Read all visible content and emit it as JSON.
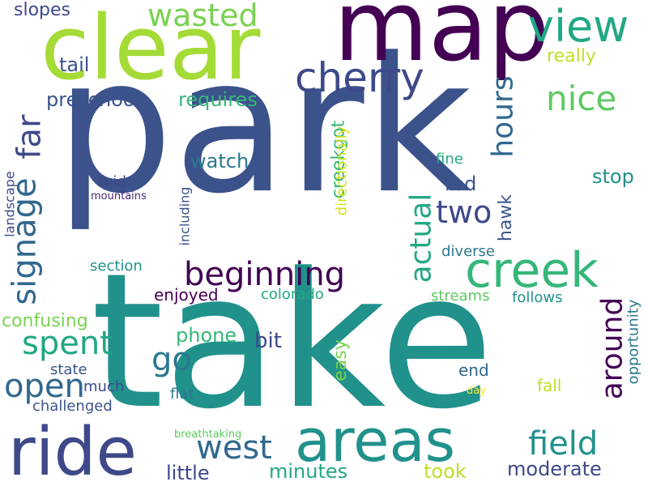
{
  "words": [
    {
      "text": "park",
      "color": "#3b528b"
    },
    {
      "text": "take",
      "color": "#21918c"
    },
    {
      "text": "map",
      "color": "#440154"
    },
    {
      "text": "clear",
      "color": "#a5db36"
    },
    {
      "text": "areas",
      "color": "#21918c"
    },
    {
      "text": "ride",
      "color": "#3e4989"
    },
    {
      "text": "creek",
      "color": "#35b779"
    },
    {
      "text": "cherry",
      "color": "#3e4989"
    },
    {
      "text": "view",
      "color": "#22a884"
    },
    {
      "text": "wasted",
      "color": "#7ad151"
    },
    {
      "text": "nice",
      "color": "#5ec962"
    },
    {
      "text": "beginning",
      "color": "#440154"
    },
    {
      "text": "signage",
      "color": "#31688e"
    },
    {
      "text": "far",
      "color": "#3e4989"
    },
    {
      "text": "two",
      "color": "#3e4989"
    },
    {
      "text": "hours",
      "color": "#31688e"
    },
    {
      "text": "actual",
      "color": "#22a884"
    },
    {
      "text": "around",
      "color": "#440154"
    },
    {
      "text": "field",
      "color": "#21918c"
    },
    {
      "text": "west",
      "color": "#31688e"
    },
    {
      "text": "spent",
      "color": "#22a884"
    },
    {
      "text": "open",
      "color": "#31688e"
    },
    {
      "text": "go",
      "color": "#2a788e"
    },
    {
      "text": "preschool",
      "color": "#3b528b"
    },
    {
      "text": "tail",
      "color": "#3b528b"
    },
    {
      "text": "slopes",
      "color": "#3e4989"
    },
    {
      "text": "really",
      "color": "#bddf26"
    },
    {
      "text": "requires",
      "color": "#35b779"
    },
    {
      "text": "watch",
      "color": "#2a788e"
    },
    {
      "text": "creekgot",
      "color": "#35b779"
    },
    {
      "text": "directionally",
      "color": "#d2e21b"
    },
    {
      "text": "stop",
      "color": "#21918c"
    },
    {
      "text": "fine",
      "color": "#22a884"
    },
    {
      "text": "red",
      "color": "#3b528b"
    },
    {
      "text": "hawk",
      "color": "#3b528b"
    },
    {
      "text": "mid",
      "color": "#3e4989"
    },
    {
      "text": "mountains",
      "color": "#482878"
    },
    {
      "text": "landscape",
      "color": "#3e4989"
    },
    {
      "text": "including",
      "color": "#3b528b"
    },
    {
      "text": "section",
      "color": "#21918c"
    },
    {
      "text": "diverse",
      "color": "#2a788e"
    },
    {
      "text": "enjoyed",
      "color": "#440154"
    },
    {
      "text": "colorado",
      "color": "#22a884"
    },
    {
      "text": "streams",
      "color": "#5ec962"
    },
    {
      "text": "follows",
      "color": "#21918c"
    },
    {
      "text": "opportunity",
      "color": "#2a788e"
    },
    {
      "text": "confusing",
      "color": "#7ad151"
    },
    {
      "text": "phone",
      "color": "#35b779"
    },
    {
      "text": "bit",
      "color": "#3e4989"
    },
    {
      "text": "easy",
      "color": "#7ad151"
    },
    {
      "text": "state",
      "color": "#3b528b"
    },
    {
      "text": "much",
      "color": "#3e4989"
    },
    {
      "text": "challenged",
      "color": "#3b528b"
    },
    {
      "text": "end",
      "color": "#31688e"
    },
    {
      "text": "fall",
      "color": "#bddf26"
    },
    {
      "text": "day",
      "color": "#fde725"
    },
    {
      "text": "flat",
      "color": "#2a788e"
    },
    {
      "text": "little",
      "color": "#3e4989"
    },
    {
      "text": "minutes",
      "color": "#22a884"
    },
    {
      "text": "took",
      "color": "#bddf26"
    },
    {
      "text": "moderate",
      "color": "#3e4989"
    },
    {
      "text": "breathtaking",
      "color": "#5ec962"
    }
  ]
}
